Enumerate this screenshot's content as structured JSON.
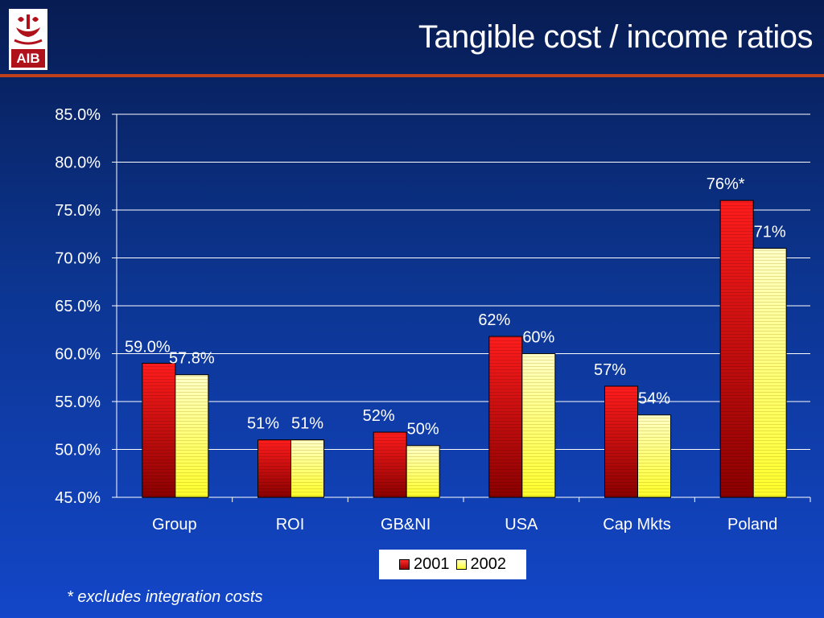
{
  "header": {
    "title": "Tangible cost / income ratios",
    "logo_text": "AIB"
  },
  "colors": {
    "background_top": "#071c52",
    "background_bottom": "#1346c8",
    "rule": "#c0401c",
    "series_2001": "#e00000",
    "series_2002": "#ffff66"
  },
  "chart_data": {
    "type": "bar",
    "title": "",
    "xlabel": "",
    "ylabel": "",
    "categories": [
      "Group",
      "ROI",
      "GB&NI",
      "USA",
      "Cap Mkts",
      "Poland"
    ],
    "ylim": [
      45,
      85
    ],
    "yticks": [
      "45.0%",
      "50.0%",
      "55.0%",
      "60.0%",
      "65.0%",
      "70.0%",
      "75.0%",
      "80.0%",
      "85.0%"
    ],
    "grid": true,
    "legend_position": "bottom",
    "series": [
      {
        "name": "2001",
        "values": [
          59.0,
          51.0,
          51.8,
          61.8,
          56.6,
          76.0
        ],
        "labels": [
          "59.0%",
          "51%",
          "52%",
          "62%",
          "57%",
          "76%*"
        ]
      },
      {
        "name": "2002",
        "values": [
          57.8,
          51.0,
          50.4,
          60.0,
          53.6,
          71.0
        ],
        "labels": [
          "57.8%",
          "51%",
          "50%",
          "60%",
          "54%",
          "71%"
        ]
      }
    ]
  },
  "legend": {
    "items": [
      "2001",
      "2002"
    ]
  },
  "footnote": "* excludes integration costs"
}
